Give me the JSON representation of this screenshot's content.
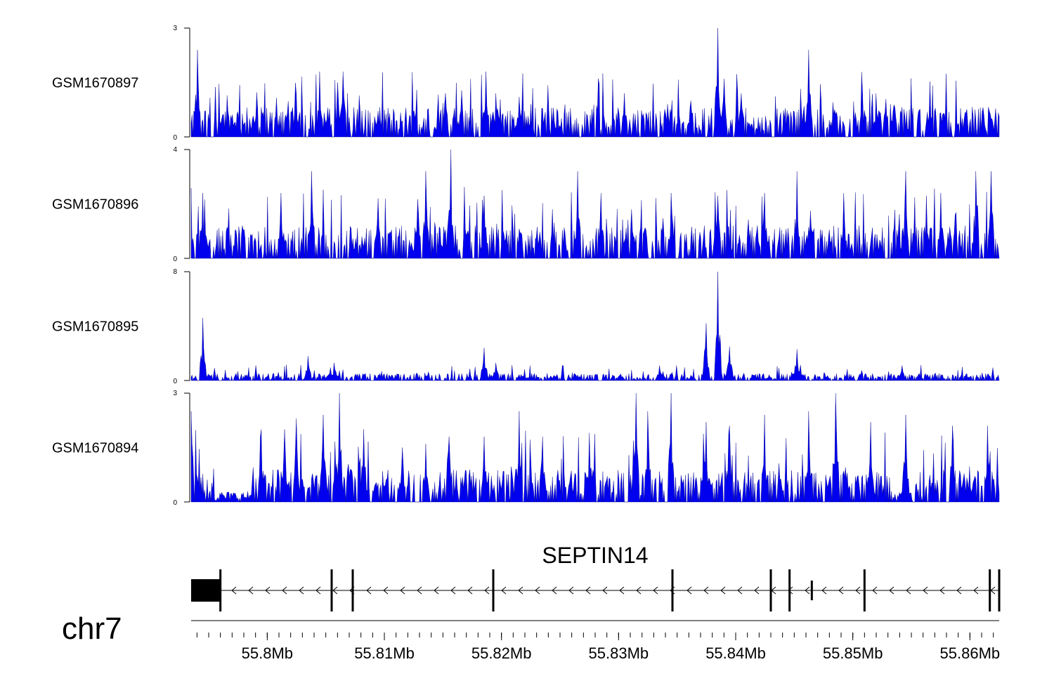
{
  "chart_data": {
    "type": "area",
    "chromosome": "chr7",
    "x_range_mb": [
      55.7935,
      55.8625
    ],
    "x_ticks": [
      {
        "value": 55.8,
        "label": "55.8Mb"
      },
      {
        "value": 55.81,
        "label": "55.81Mb"
      },
      {
        "value": 55.82,
        "label": "55.82Mb"
      },
      {
        "value": 55.83,
        "label": "55.83Mb"
      },
      {
        "value": 55.84,
        "label": "55.84Mb"
      },
      {
        "value": 55.85,
        "label": "55.85Mb"
      },
      {
        "value": 55.86,
        "label": "55.86Mb"
      }
    ],
    "series_color": "#0000ee",
    "series": [
      {
        "name": "GSM1670897",
        "ylim": [
          0,
          3
        ],
        "y_tick_labels": [
          "0",
          "3"
        ],
        "peaks": [
          [
            55.794,
            2.4
          ],
          [
            55.794,
            1.6
          ],
          [
            55.8025,
            1.2
          ],
          [
            55.8045,
            1.8
          ],
          [
            55.806,
            1.5
          ],
          [
            55.8065,
            1.8
          ],
          [
            55.8095,
            0.7
          ],
          [
            55.8152,
            1.2
          ],
          [
            55.8187,
            1.8
          ],
          [
            55.8195,
            1.2
          ],
          [
            55.8215,
            1.1
          ],
          [
            55.8225,
            0.9
          ],
          [
            55.8305,
            1.2
          ],
          [
            55.8342,
            0.9
          ],
          [
            55.8362,
            1.0
          ],
          [
            55.8385,
            3.0
          ],
          [
            55.839,
            1.6
          ],
          [
            55.8405,
            1.2
          ],
          [
            55.8462,
            2.4
          ],
          [
            55.8508,
            1.2
          ],
          [
            55.852,
            1.2
          ],
          [
            55.8566,
            1.2
          ],
          [
            55.8612,
            0.6
          ]
        ],
        "baseline_level": 0.55
      },
      {
        "name": "GSM1670896",
        "ylim": [
          0,
          4
        ],
        "y_tick_labels": [
          "0",
          "4"
        ],
        "peaks": [
          [
            55.7945,
            2.4
          ],
          [
            55.8012,
            2.4
          ],
          [
            55.8038,
            3.2
          ],
          [
            55.8095,
            2.2
          ],
          [
            55.8135,
            3.2
          ],
          [
            55.8157,
            4.0
          ],
          [
            55.8185,
            2.3
          ],
          [
            55.8265,
            3.2
          ],
          [
            55.8285,
            2.4
          ],
          [
            55.8345,
            2.4
          ],
          [
            55.8385,
            2.3
          ],
          [
            55.8425,
            2.4
          ],
          [
            55.8452,
            3.2
          ],
          [
            55.8492,
            2.4
          ],
          [
            55.8545,
            3.2
          ],
          [
            55.8575,
            2.4
          ],
          [
            55.8605,
            3.2
          ],
          [
            55.8618,
            3.2
          ]
        ],
        "baseline_level": 0.8
      },
      {
        "name": "GSM1670895",
        "ylim": [
          0,
          8
        ],
        "y_tick_labels": [
          "0",
          "8"
        ],
        "peaks": [
          [
            55.7945,
            4.6
          ],
          [
            55.8035,
            1.8
          ],
          [
            55.8057,
            1.3
          ],
          [
            55.8185,
            2.4
          ],
          [
            55.8195,
            1.3
          ],
          [
            55.8335,
            1.1
          ],
          [
            55.8375,
            4.2
          ],
          [
            55.8385,
            8.0
          ],
          [
            55.8395,
            2.5
          ],
          [
            55.8452,
            2.3
          ],
          [
            55.8542,
            1.1
          ]
        ],
        "baseline_level": 0.35
      },
      {
        "name": "GSM1670894",
        "ylim": [
          0,
          3
        ],
        "y_tick_labels": [
          "0",
          "3"
        ],
        "peaks": [
          [
            55.7935,
            2.5
          ],
          [
            55.7995,
            2.0
          ],
          [
            55.8015,
            2.0
          ],
          [
            55.8025,
            2.3
          ],
          [
            55.8048,
            2.4
          ],
          [
            55.8062,
            3.0
          ],
          [
            55.8082,
            2.0
          ],
          [
            55.8115,
            1.5
          ],
          [
            55.8135,
            1.6
          ],
          [
            55.8155,
            1.8
          ],
          [
            55.8185,
            1.8
          ],
          [
            55.8215,
            2.5
          ],
          [
            55.8235,
            1.8
          ],
          [
            55.8275,
            1.9
          ],
          [
            55.8315,
            3.0
          ],
          [
            55.8325,
            2.5
          ],
          [
            55.8345,
            3.0
          ],
          [
            55.8375,
            2.2
          ],
          [
            55.8395,
            2.1
          ],
          [
            55.8425,
            2.4
          ],
          [
            55.8462,
            2.5
          ],
          [
            55.8485,
            3.0
          ],
          [
            55.8515,
            2.2
          ],
          [
            55.8545,
            2.4
          ],
          [
            55.8585,
            2.1
          ],
          [
            55.8615,
            2.1
          ]
        ],
        "baseline_level": 0.6,
        "dip_ranges": [
          [
            55.7955,
            55.7985
          ],
          [
            55.8535,
            55.855
          ]
        ]
      }
    ],
    "gene": {
      "name": "SEPTIN14",
      "strand": "-",
      "start_mb": 55.7935,
      "end_mb": 55.8625,
      "utr_block_mb": [
        55.7935,
        55.796
      ],
      "exons_mb": [
        55.796,
        55.8055,
        55.8073,
        55.8193,
        55.8346,
        55.843,
        55.8446,
        55.8465,
        55.851,
        55.8617,
        55.8625
      ]
    }
  }
}
